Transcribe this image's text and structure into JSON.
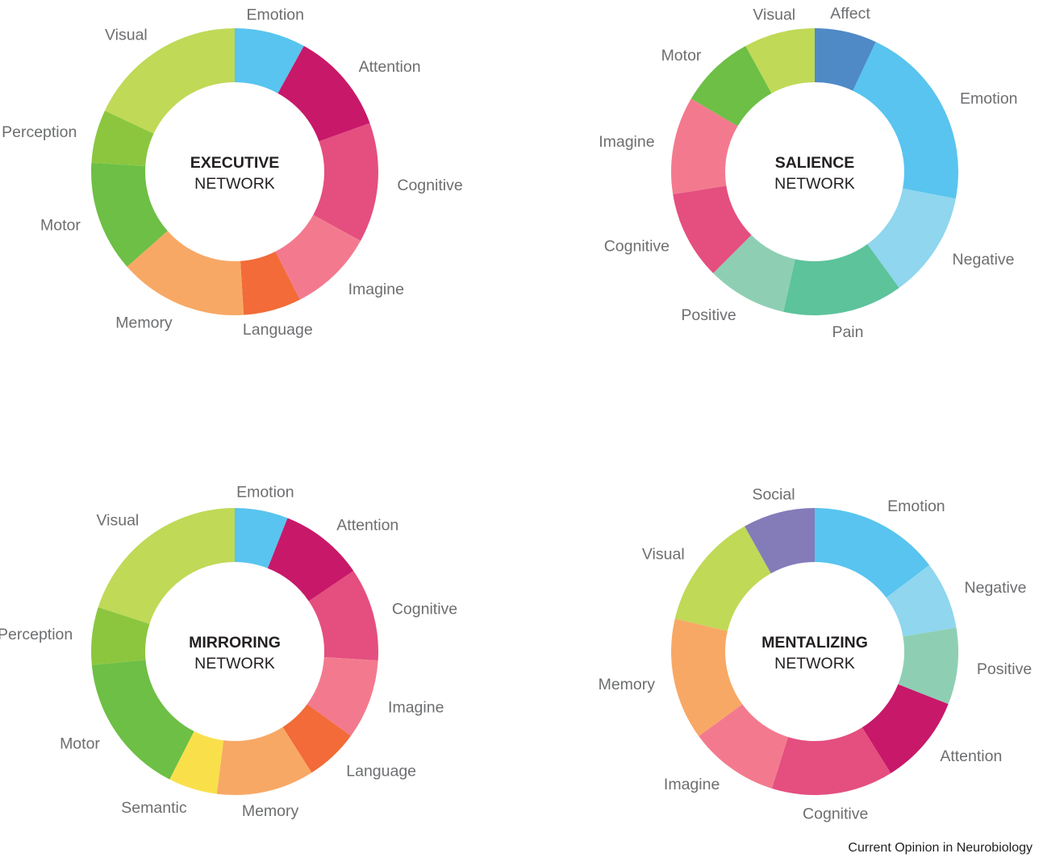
{
  "source_credit": "Current Opinion in Neurobiology",
  "chart_data": [
    {
      "type": "pie",
      "title_bold": "EXECUTIVE",
      "title_regular": "NETWORK",
      "slices": [
        {
          "label": "Emotion",
          "value": 8.0,
          "color": "#58c4ef"
        },
        {
          "label": "Attention",
          "value": 11.5,
          "color": "#c8186a"
        },
        {
          "label": "Cognitive",
          "value": 13.5,
          "color": "#e44f7f"
        },
        {
          "label": "Imagine",
          "value": 9.5,
          "color": "#f37a8e"
        },
        {
          "label": "Language",
          "value": 6.5,
          "color": "#f26b38"
        },
        {
          "label": "Memory",
          "value": 14.5,
          "color": "#f8a865"
        },
        {
          "label": "Motor",
          "value": 12.5,
          "color": "#6dbf45"
        },
        {
          "label": "Perception",
          "value": 6.0,
          "color": "#8cc63f"
        },
        {
          "label": "Visual",
          "value": 18.0,
          "color": "#c0d957"
        }
      ]
    },
    {
      "type": "pie",
      "title_bold": "SALIENCE",
      "title_regular": "NETWORK",
      "slices": [
        {
          "label": "Affect",
          "value": 7.0,
          "color": "#4f8ac7"
        },
        {
          "label": "Emotion",
          "value": 21.0,
          "color": "#58c4ef"
        },
        {
          "label": "Negative",
          "value": 12.0,
          "color": "#8fd6ee"
        },
        {
          "label": "Pain",
          "value": 13.5,
          "color": "#5cc39b"
        },
        {
          "label": "Positive",
          "value": 9.0,
          "color": "#8ecfb3"
        },
        {
          "label": "Cognitive",
          "value": 10.0,
          "color": "#e44f7f"
        },
        {
          "label": "Imagine",
          "value": 11.0,
          "color": "#f37a8e"
        },
        {
          "label": "Motor",
          "value": 8.5,
          "color": "#6dbf45"
        },
        {
          "label": "Visual",
          "value": 8.0,
          "color": "#c0d957"
        }
      ]
    },
    {
      "type": "pie",
      "title_bold": "MIRRORING",
      "title_regular": "NETWORK",
      "slices": [
        {
          "label": "Emotion",
          "value": 6.0,
          "color": "#58c4ef"
        },
        {
          "label": "Attention",
          "value": 9.5,
          "color": "#c8186a"
        },
        {
          "label": "Cognitive",
          "value": 10.5,
          "color": "#e44f7f"
        },
        {
          "label": "Imagine",
          "value": 9.0,
          "color": "#f37a8e"
        },
        {
          "label": "Language",
          "value": 6.0,
          "color": "#f26b38"
        },
        {
          "label": "Memory",
          "value": 11.0,
          "color": "#f8a865"
        },
        {
          "label": "Semantic",
          "value": 5.5,
          "color": "#f9e04b"
        },
        {
          "label": "Motor",
          "value": 16.0,
          "color": "#6dbf45"
        },
        {
          "label": "Perception",
          "value": 6.5,
          "color": "#8cc63f"
        },
        {
          "label": "Visual",
          "value": 20.0,
          "color": "#c0d957"
        }
      ]
    },
    {
      "type": "pie",
      "title_bold": "MENTALIZING",
      "title_regular": "NETWORK",
      "slices": [
        {
          "label": "Emotion",
          "value": 14.5,
          "color": "#58c4ef"
        },
        {
          "label": "Negative",
          "value": 7.5,
          "color": "#8fd6ee"
        },
        {
          "label": "Positive",
          "value": 8.5,
          "color": "#8ecfb3"
        },
        {
          "label": "Attention",
          "value": 10.0,
          "color": "#c8186a"
        },
        {
          "label": "Cognitive",
          "value": 13.5,
          "color": "#e44f7f"
        },
        {
          "label": "Imagine",
          "value": 10.0,
          "color": "#f37a8e"
        },
        {
          "label": "Memory",
          "value": 13.5,
          "color": "#f8a865"
        },
        {
          "label": "Visual",
          "value": 13.0,
          "color": "#c0d957"
        },
        {
          "label": "Social",
          "value": 8.0,
          "color": "#837cb9"
        }
      ]
    }
  ]
}
